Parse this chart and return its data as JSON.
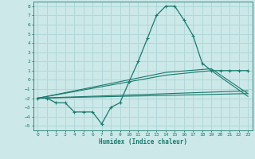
{
  "title": "",
  "xlabel": "Humidex (Indice chaleur)",
  "ylabel": "",
  "background_color": "#cce8e8",
  "grid_color": "#b0d8d8",
  "line_color": "#1a7a6e",
  "xlim": [
    -0.5,
    23.5
  ],
  "ylim": [
    -5.5,
    8.5
  ],
  "xticks": [
    0,
    1,
    2,
    3,
    4,
    5,
    6,
    7,
    8,
    9,
    10,
    11,
    12,
    13,
    14,
    15,
    16,
    17,
    18,
    19,
    20,
    21,
    22,
    23
  ],
  "yticks": [
    -5,
    -4,
    -3,
    -2,
    -1,
    0,
    1,
    2,
    3,
    4,
    5,
    6,
    7,
    8
  ],
  "series_main": {
    "x": [
      0,
      1,
      2,
      3,
      4,
      5,
      6,
      7,
      8,
      9,
      10,
      11,
      12,
      13,
      14,
      15,
      16,
      17,
      18,
      19,
      20,
      21,
      22,
      23
    ],
    "y": [
      -2,
      -2,
      -2.5,
      -2.5,
      -3.5,
      -3.5,
      -3.5,
      -4.8,
      -3,
      -2.5,
      -0.2,
      2,
      4.5,
      7,
      8,
      8,
      6.5,
      4.8,
      1.8,
      1,
      1,
      1,
      1,
      1
    ]
  },
  "series_line1": {
    "x": [
      0,
      23
    ],
    "y": [
      -2,
      -1.5
    ]
  },
  "series_line2": {
    "x": [
      0,
      23
    ],
    "y": [
      -2,
      -1.2
    ]
  },
  "series_line3": {
    "x": [
      0,
      14,
      19,
      23
    ],
    "y": [
      -2,
      0.5,
      1.0,
      -1.8
    ]
  },
  "series_line4": {
    "x": [
      0,
      14,
      19,
      23
    ],
    "y": [
      -2,
      0.8,
      1.2,
      -1.5
    ]
  }
}
